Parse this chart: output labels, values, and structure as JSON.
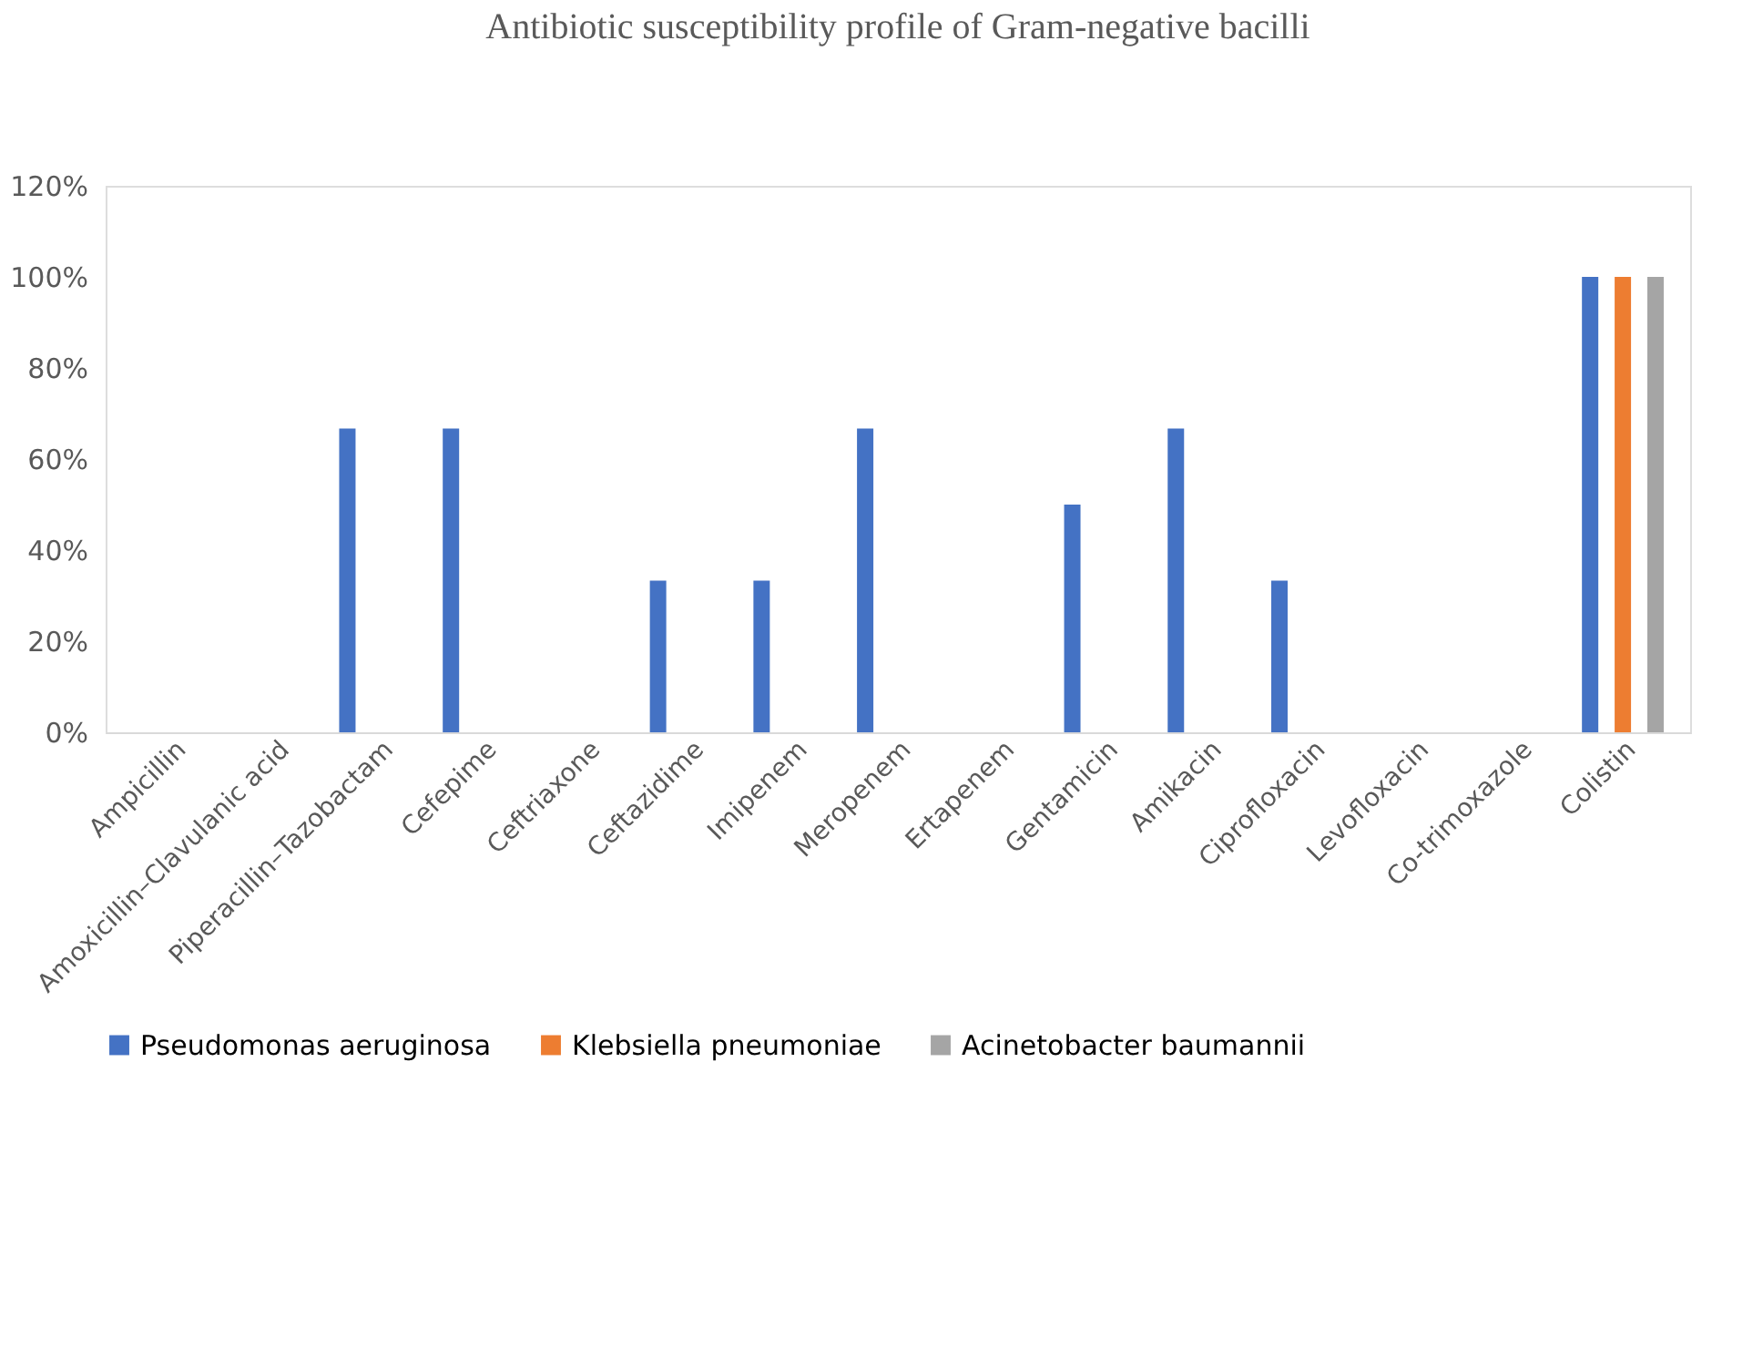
{
  "chart_data": {
    "type": "bar",
    "title": "Antibiotic susceptibility profile of Gram-negative bacilli",
    "categories": [
      "Ampicillin",
      "Amoxicillin–Clavulanic acid",
      "Piperacillin–Tazobactam",
      "Cefepime",
      "Ceftriaxone",
      "Ceftazidime",
      "Imipenem",
      "Meropenem",
      "Ertapenem",
      "Gentamicin",
      "Amikacin",
      "Ciprofloxacin",
      "Levofloxacin",
      "Co-trimoxazole",
      "Colistin"
    ],
    "series": [
      {
        "name": "Pseudomonas aeruginosa",
        "color": "#4472c4",
        "values": [
          0,
          0,
          66.7,
          66.7,
          0,
          33.3,
          33.3,
          66.7,
          0,
          50,
          66.7,
          33.3,
          0,
          0,
          100
        ]
      },
      {
        "name": "Klebsiella pneumoniae",
        "color": "#ed7d31",
        "values": [
          0,
          0,
          0,
          0,
          0,
          0,
          0,
          0,
          0,
          0,
          0,
          0,
          0,
          0,
          100
        ]
      },
      {
        "name": "Acinetobacter baumannii",
        "color": "#a5a5a5",
        "values": [
          0,
          0,
          0,
          0,
          0,
          0,
          0,
          0,
          0,
          0,
          0,
          0,
          0,
          0,
          100
        ]
      }
    ],
    "ylim": [
      0,
      120
    ],
    "yticks": [
      {
        "value": 0,
        "label": "0%"
      },
      {
        "value": 20,
        "label": "20%"
      },
      {
        "value": 40,
        "label": "40%"
      },
      {
        "value": 60,
        "label": "60%"
      },
      {
        "value": 80,
        "label": "80%"
      },
      {
        "value": 100,
        "label": "100%"
      },
      {
        "value": 120,
        "label": "120%"
      }
    ],
    "grid": false,
    "legend": "bottom"
  }
}
